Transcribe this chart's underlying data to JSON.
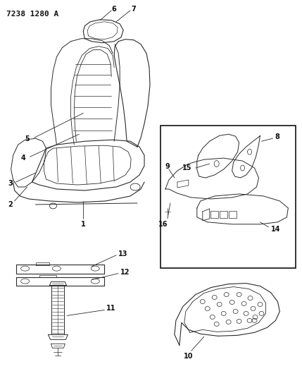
{
  "title": "7238 1280 A",
  "bg_color": "#ffffff",
  "line_color": "#2a2a2a",
  "title_fontsize": 8,
  "label_fontsize": 7,
  "fig_width": 4.29,
  "fig_height": 5.33,
  "dpi": 100
}
